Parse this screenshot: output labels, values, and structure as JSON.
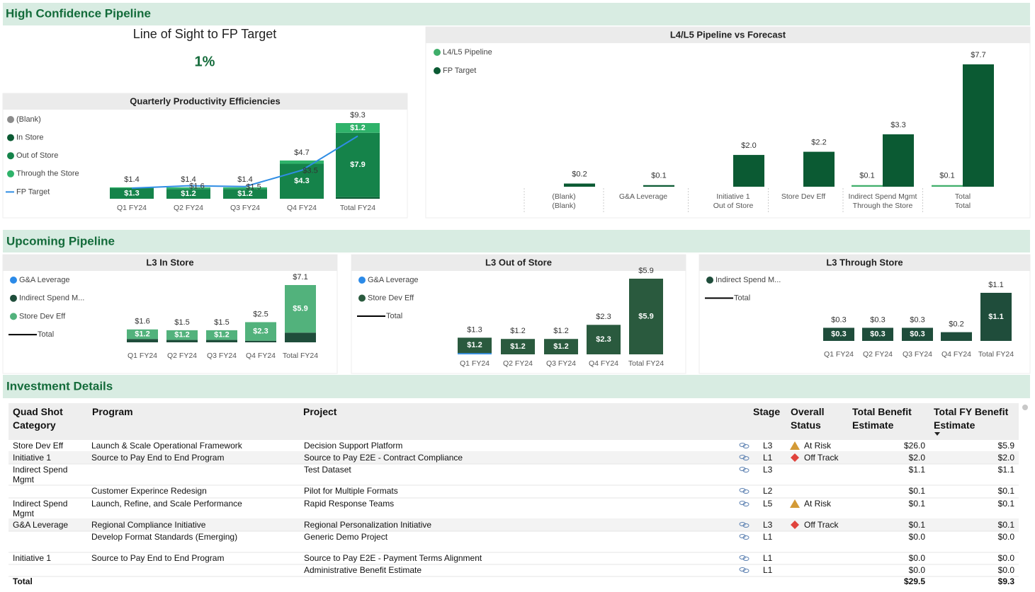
{
  "sections": [
    "High Confidence Pipeline",
    "Upcoming Pipeline",
    "Investment Details"
  ],
  "kpi": {
    "title": "Line of Sight to FP Target",
    "value": "1%"
  },
  "chart_data": [
    {
      "type": "stacked",
      "title": "Quarterly Productivity Efficiencies",
      "categories": [
        "Q1 FY24",
        "Q2 FY24",
        "Q3 FY24",
        "Q4 FY24",
        "Total FY24"
      ],
      "series": [
        {
          "name": "(Blank)",
          "color": "#8c8c8c",
          "values": [
            null,
            null,
            null,
            null,
            null
          ]
        },
        {
          "name": "In Store",
          "color": "#0b5a33",
          "values": [
            null,
            null,
            null,
            null,
            0.2
          ]
        },
        {
          "name": "Out of Store",
          "color": "#15834a",
          "values": [
            1.3,
            1.2,
            1.2,
            4.3,
            7.9
          ],
          "value_labels": [
            "$1.3",
            "$1.2",
            "$1.2",
            "$4.3",
            "$7.9"
          ]
        },
        {
          "name": "Through the Store",
          "color": "#2fb36a",
          "values": [
            0.1,
            0.2,
            0.2,
            0.4,
            1.2
          ],
          "value_labels": [
            null,
            null,
            null,
            null,
            "$1.2"
          ]
        }
      ],
      "line": {
        "name": "FP Target",
        "color": "#2f8de4",
        "values": [
          1.3,
          1.6,
          1.5,
          3.5,
          7.7
        ],
        "value_labels": [
          null,
          "$1.6",
          "$1.5",
          "$3.5",
          null
        ]
      },
      "totals": {
        "values": [
          1.4,
          1.4,
          1.4,
          4.7,
          9.3
        ],
        "value_labels": [
          "$1.4",
          "$1.4",
          "$1.4",
          "$4.7",
          "$9.3"
        ]
      }
    },
    {
      "type": "clustered",
      "title": "L4/L5 Pipeline vs Forecast",
      "categories": [
        [
          "(Blank)",
          "(Blank)"
        ],
        [
          "G&A Leverage"
        ],
        [
          "Initiative 1",
          "Out of Store"
        ],
        [
          "Store Dev Eff"
        ],
        [
          "Indirect Spend Mgmt",
          "Through the Store"
        ],
        [
          "Total",
          "Total"
        ]
      ],
      "series": [
        {
          "name": "L4/L5 Pipeline",
          "color": "#3fae6a",
          "values": [
            null,
            null,
            null,
            null,
            0.1,
            0.1
          ],
          "value_labels": [
            null,
            null,
            null,
            null,
            "$0.1",
            "$0.1"
          ]
        },
        {
          "name": "FP Target",
          "color": "#0b5a33",
          "values": [
            0.2,
            0.1,
            2.0,
            2.2,
            3.3,
            7.7
          ],
          "value_labels": [
            "$0.2",
            "$0.1",
            "$2.0",
            "$2.2",
            "$3.3",
            "$7.7"
          ]
        }
      ]
    },
    {
      "type": "stacked",
      "title": "L3 In Store",
      "categories": [
        "Q1 FY24",
        "Q2 FY24",
        "Q3 FY24",
        "Q4 FY24",
        "Total FY24"
      ],
      "series": [
        {
          "name": "G&A Leverage",
          "color": "#2b8ae8",
          "values": [
            null,
            null,
            null,
            null,
            null
          ]
        },
        {
          "name": "Indirect Spend M...",
          "color": "#1f4d3b",
          "values": [
            0.4,
            0.3,
            0.3,
            0.2,
            1.2
          ]
        },
        {
          "name": "Store Dev Eff",
          "color": "#52b27c",
          "values": [
            1.2,
            1.2,
            1.2,
            2.3,
            5.9
          ],
          "value_labels": [
            "$1.2",
            "$1.2",
            "$1.2",
            "$2.3",
            "$5.9"
          ]
        }
      ],
      "totals": {
        "name": "Total",
        "color": "#000000",
        "values": [
          1.6,
          1.5,
          1.5,
          2.5,
          7.1
        ],
        "value_labels": [
          "$1.6",
          "$1.5",
          "$1.5",
          "$2.5",
          "$7.1"
        ]
      }
    },
    {
      "type": "stacked",
      "title": "L3 Out of Store",
      "categories": [
        "Q1 FY24",
        "Q2 FY24",
        "Q3 FY24",
        "Q4 FY24",
        "Total FY24"
      ],
      "series": [
        {
          "name": "G&A Leverage",
          "color": "#2b8ae8",
          "values": [
            0.1,
            null,
            null,
            null,
            null
          ]
        },
        {
          "name": "Store Dev Eff",
          "color": "#2a5a3e",
          "values": [
            1.2,
            1.2,
            1.2,
            2.3,
            5.9
          ],
          "value_labels": [
            "$1.2",
            "$1.2",
            "$1.2",
            "$2.3",
            "$5.9"
          ]
        }
      ],
      "totals": {
        "name": "Total",
        "color": "#000000",
        "values": [
          1.3,
          1.2,
          1.2,
          2.3,
          5.9
        ],
        "value_labels": [
          "$1.3",
          "$1.2",
          "$1.2",
          "$2.3",
          "$5.9"
        ]
      }
    },
    {
      "type": "stacked",
      "title": "L3 Through Store",
      "categories": [
        "Q1 FY24",
        "Q2 FY24",
        "Q3 FY24",
        "Q4 FY24",
        "Total FY24"
      ],
      "series": [
        {
          "name": "Indirect Spend M...",
          "color": "#1f4d3b",
          "values": [
            0.3,
            0.3,
            0.3,
            0.2,
            1.1
          ],
          "value_labels": [
            "$0.3",
            "$0.3",
            "$0.3",
            null,
            "$1.1"
          ]
        }
      ],
      "totals": {
        "name": "Total",
        "color": "#000000",
        "values": [
          0.3,
          0.3,
          0.3,
          0.2,
          1.1
        ],
        "value_labels": [
          "$0.3",
          "$0.3",
          "$0.3",
          "$0.2",
          "$1.1"
        ]
      }
    }
  ],
  "table": {
    "columns": [
      "Quad Shot Category",
      "Program",
      "Project",
      "Stage",
      "Overall Status",
      "Total Benefit Estimate",
      "Total FY Benefit Estimate"
    ],
    "rows": [
      [
        "Store Dev Eff",
        "Launch & Scale Operational Framework",
        "Decision Support Platform",
        "L3",
        {
          "text": "At Risk",
          "icon": "triangle"
        },
        "$26.0",
        "$5.9"
      ],
      [
        "Initiative 1",
        "Source to Pay End to End Program",
        "Source to Pay E2E - Contract Compliance",
        "L1",
        {
          "text": "Off Track",
          "icon": "diamond"
        },
        "$2.0",
        "$2.0"
      ],
      [
        "Indirect Spend Mgmt",
        null,
        "Test Dataset",
        "L3",
        null,
        "$1.1",
        "$1.1"
      ],
      [
        null,
        "Customer Experince Redesign",
        "Pilot for Multiple Formats",
        "L2",
        null,
        "$0.1",
        "$0.1"
      ],
      [
        "Indirect Spend Mgmt",
        "Launch, Refine, and Scale Performance",
        "Rapid Response Teams",
        "L5",
        {
          "text": "At Risk",
          "icon": "triangle"
        },
        "$0.1",
        "$0.1"
      ],
      [
        "G&A Leverage",
        "Regional Compliance Initiative",
        "Regional Personalization Initiative",
        "L3",
        {
          "text": "Off Track",
          "icon": "diamond"
        },
        "$0.1",
        "$0.1"
      ],
      [
        null,
        "Develop Format Standards (Emerging)",
        "Generic Demo Project",
        "L1",
        null,
        "$0.0",
        "$0.0"
      ],
      [
        "Initiative 1",
        "Source to Pay End to End Program",
        "Source to Pay E2E - Payment Terms Alignment",
        "L1",
        null,
        "$0.0",
        "$0.0"
      ],
      [
        null,
        null,
        "Administrative Benefit Estimate",
        "L1",
        null,
        "$0.0",
        "$0.0"
      ]
    ],
    "total": {
      "label": "Total",
      "values": [
        "$29.5",
        "$9.3"
      ]
    }
  }
}
